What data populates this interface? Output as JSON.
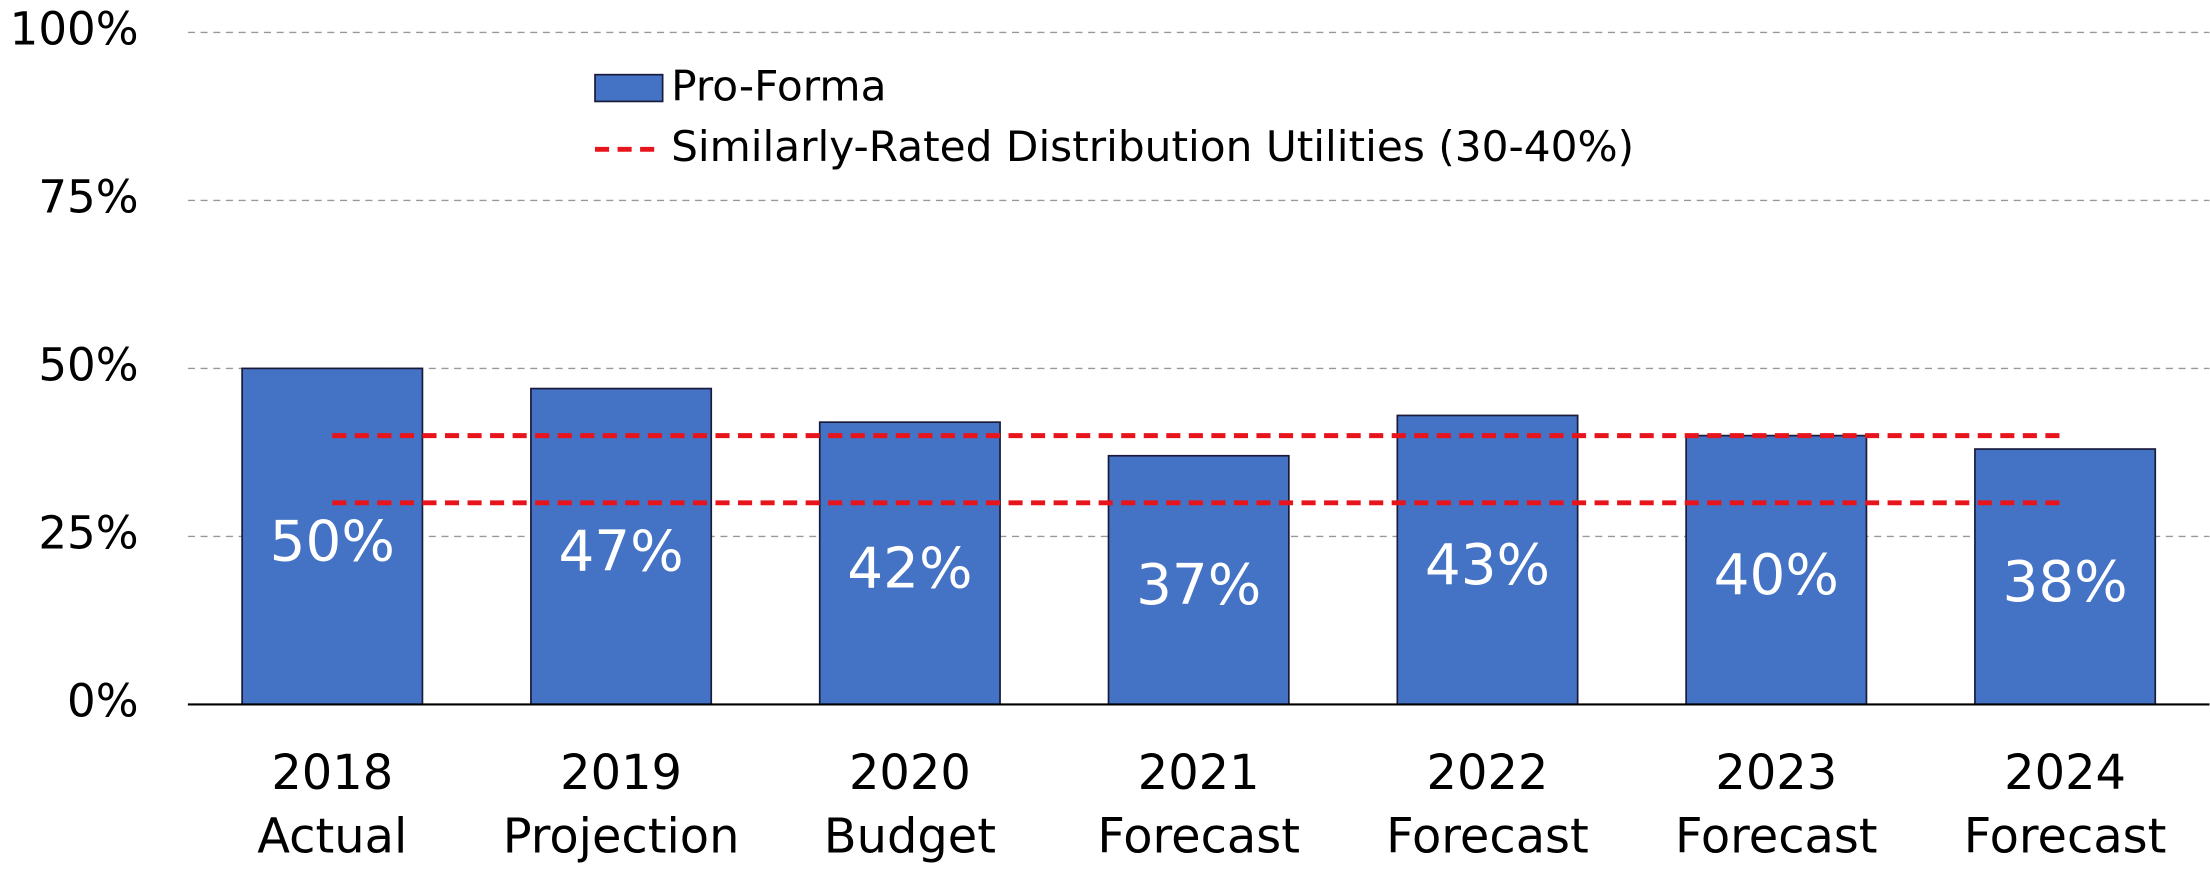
{
  "chart_data": {
    "type": "bar",
    "categories": [
      [
        "2018",
        "Actual"
      ],
      [
        "2019",
        "Projection"
      ],
      [
        "2020",
        "Budget"
      ],
      [
        "2021",
        "Forecast"
      ],
      [
        "2022",
        "Forecast"
      ],
      [
        "2023",
        "Forecast"
      ],
      [
        "2024",
        "Forecast"
      ]
    ],
    "series": [
      {
        "name": "Pro-Forma",
        "color": "#4472c4",
        "values": [
          50,
          47,
          42,
          37,
          43,
          40,
          38
        ],
        "value_labels": [
          "50%",
          "47%",
          "42%",
          "37%",
          "43%",
          "40%",
          "38%"
        ]
      }
    ],
    "reference_lines": {
      "name": "Similarly-Rated Distribution Utilities (30-40%)",
      "color": "#e8141c",
      "values": [
        30,
        40
      ]
    },
    "ylim": [
      0,
      100
    ],
    "yticks": [
      {
        "value": 0,
        "label": "0%"
      },
      {
        "value": 25,
        "label": "25%"
      },
      {
        "value": 50,
        "label": "50%"
      },
      {
        "value": 75,
        "label": "75%"
      },
      {
        "value": 100,
        "label": "100%"
      }
    ],
    "grid": true
  }
}
